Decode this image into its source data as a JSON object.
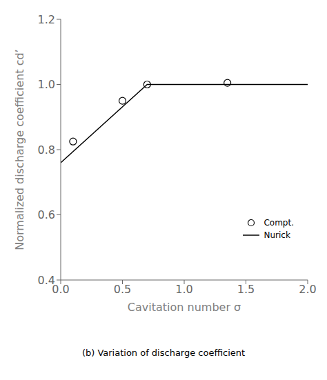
{
  "chart_data": {
    "type": "scatter",
    "title": "(b) Variation of discharge coefficient",
    "xlabel": "Cavitation number  σ",
    "ylabel": "Normalized discharge coefficient  cd’",
    "series": [
      {
        "name": "Compt.",
        "type": "scatter",
        "marker": "circle",
        "color": "#000000",
        "x": [
          0.1,
          0.5,
          0.7,
          1.35
        ],
        "values": [
          0.825,
          0.95,
          1.0,
          1.005
        ]
      },
      {
        "name": "Nurick",
        "type": "line",
        "line_style": "solid",
        "color": "#000000",
        "x": [
          0.0,
          0.7,
          2.0
        ],
        "values": [
          0.76,
          1.0,
          1.0
        ]
      }
    ],
    "xlim": [
      0.0,
      2.0
    ],
    "ylim": [
      0.4,
      1.2
    ],
    "xticks": [
      {
        "value": 0.0,
        "label": "0.0"
      },
      0.5,
      {
        "value": 1.0,
        "label": "1.0"
      },
      1.5,
      {
        "value": 2.0,
        "label": "2.0"
      }
    ],
    "yticks": [
      0.4,
      0.6,
      0.8,
      {
        "value": 1.0,
        "label": "1.0"
      },
      1.2
    ],
    "grid": false,
    "legend": "lower right"
  }
}
